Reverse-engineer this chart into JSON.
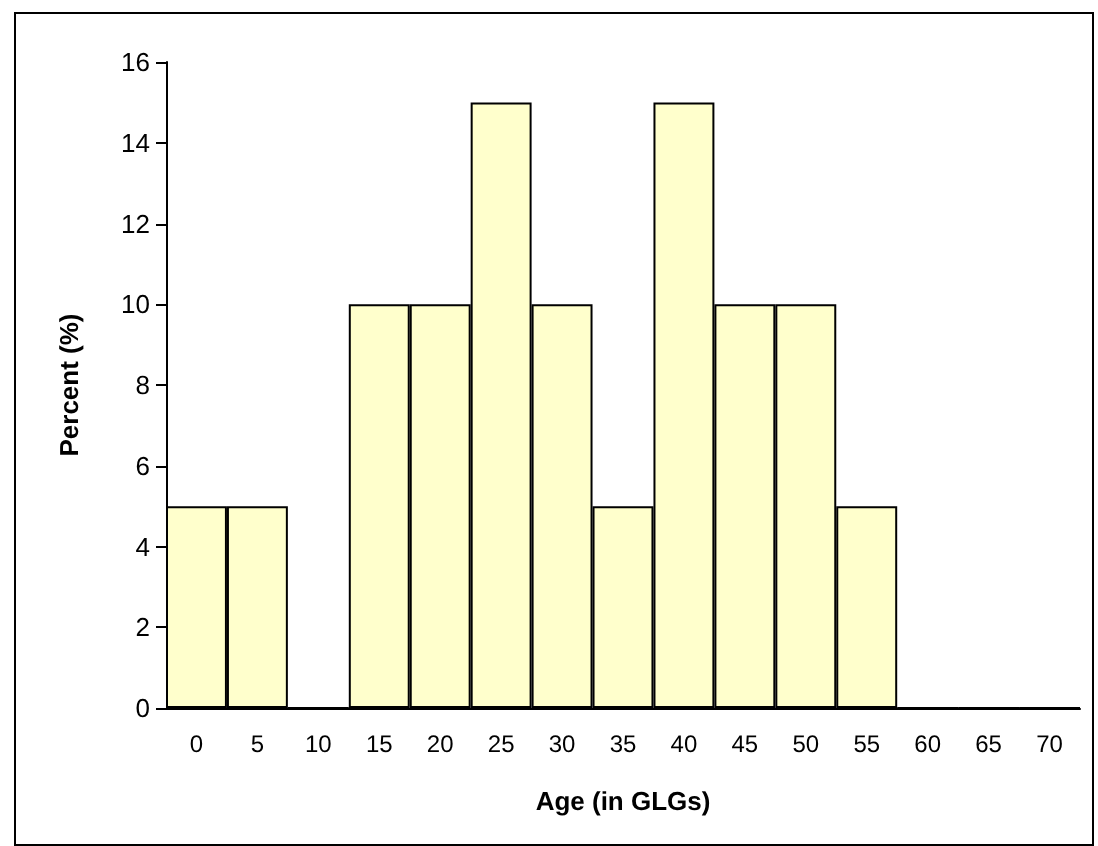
{
  "chart_data": {
    "type": "bar",
    "xlabel": "Age (in GLGs)",
    "ylabel": "Percent (%)",
    "categories": [
      "0",
      "5",
      "10",
      "15",
      "20",
      "25",
      "30",
      "35",
      "40",
      "45",
      "50",
      "55",
      "60",
      "65",
      "70"
    ],
    "values": [
      5,
      5,
      0,
      10,
      10,
      15,
      10,
      5,
      15,
      10,
      10,
      5,
      0,
      0,
      0
    ],
    "color": "#ffffcc",
    "ylim": [
      0,
      16
    ],
    "yticks": [
      0,
      2,
      4,
      6,
      8,
      10,
      12,
      14,
      16
    ],
    "grid": false
  }
}
